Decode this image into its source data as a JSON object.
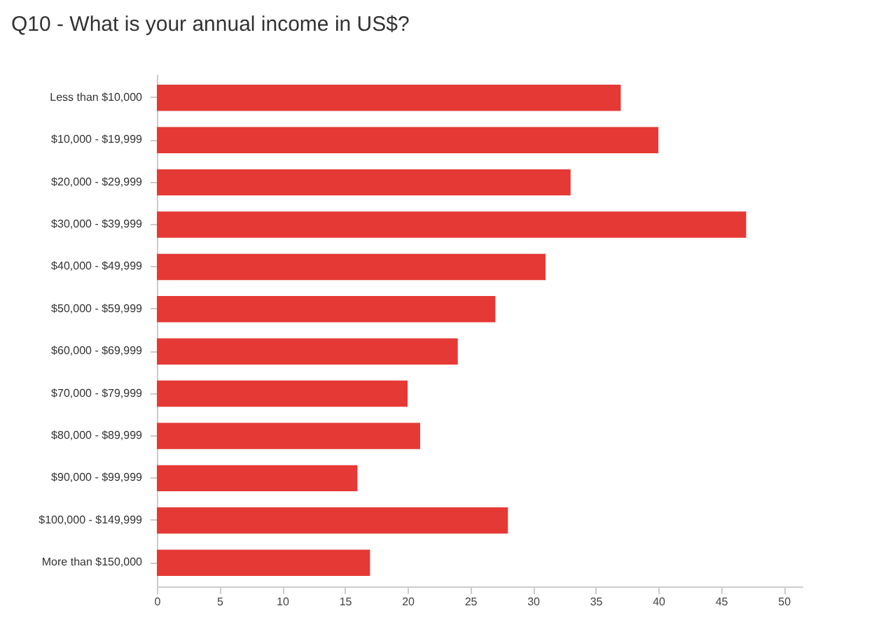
{
  "chart_data": {
    "type": "bar",
    "orientation": "horizontal",
    "title": "Q10 - What is your annual income in US$?",
    "categories": [
      "Less than $10,000",
      "$10,000 - $19,999",
      "$20,000 - $29,999",
      "$30,000 - $39,999",
      "$40,000 - $49,999",
      "$50,000 - $59,999",
      "$60,000 - $69,999",
      "$70,000 - $79,999",
      "$80,000 - $89,999",
      "$90,000 - $99,999",
      "$100,000 - $149,999",
      "More than $150,000"
    ],
    "values": [
      37,
      40,
      33,
      47,
      31,
      27,
      24,
      20,
      21,
      16,
      28,
      17
    ],
    "color": "#e53935",
    "xlim": [
      0,
      51.5
    ],
    "xticks": [
      0,
      5,
      10,
      15,
      20,
      25,
      30,
      35,
      40,
      45,
      50
    ],
    "grid": false
  }
}
